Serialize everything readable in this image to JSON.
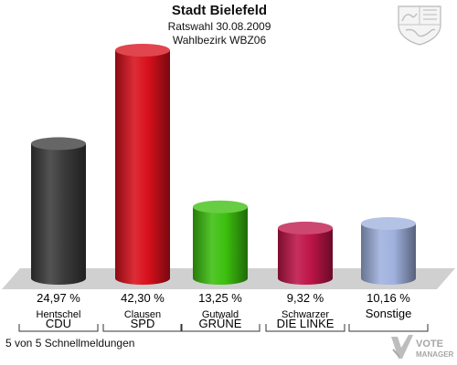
{
  "header": {
    "title": "Stadt Bielefeld",
    "date_line": "Ratswahl 30.08.2009",
    "district_line": "Wahlbezirk WBZ06"
  },
  "footer": {
    "reports": "5 von 5 Schnellmeldungen",
    "logo_line1": "VOTE",
    "logo_line2": "MANAGER"
  },
  "icons": {
    "crest": "nrw-coat-of-arms-icon",
    "logo": "vote-manager-logo-icon"
  },
  "chart_data": {
    "type": "bar",
    "title": "",
    "xlabel": "",
    "ylabel": "",
    "ylim": [
      0,
      45
    ],
    "grid": false,
    "legend": "none",
    "bars": [
      {
        "candidate": "Hentschel",
        "party": "CDU",
        "value": 24.97,
        "label": "24,97 %",
        "color": "#3b3b3b"
      },
      {
        "candidate": "Clausen",
        "party": "SPD",
        "value": 42.3,
        "label": "42,30 %",
        "color": "#d8101c"
      },
      {
        "candidate": "Gutwald",
        "party": "GRÜNE",
        "value": 13.25,
        "label": "13,25 %",
        "color": "#3cbf0e"
      },
      {
        "candidate": "Schwarzer",
        "party": "DIE LINKE",
        "value": 9.32,
        "label": "9,32 %",
        "color": "#be1448"
      },
      {
        "candidate": "",
        "party": "Sonstige",
        "value": 10.16,
        "label": "10,16 %",
        "color": "#9fb1de"
      }
    ]
  }
}
